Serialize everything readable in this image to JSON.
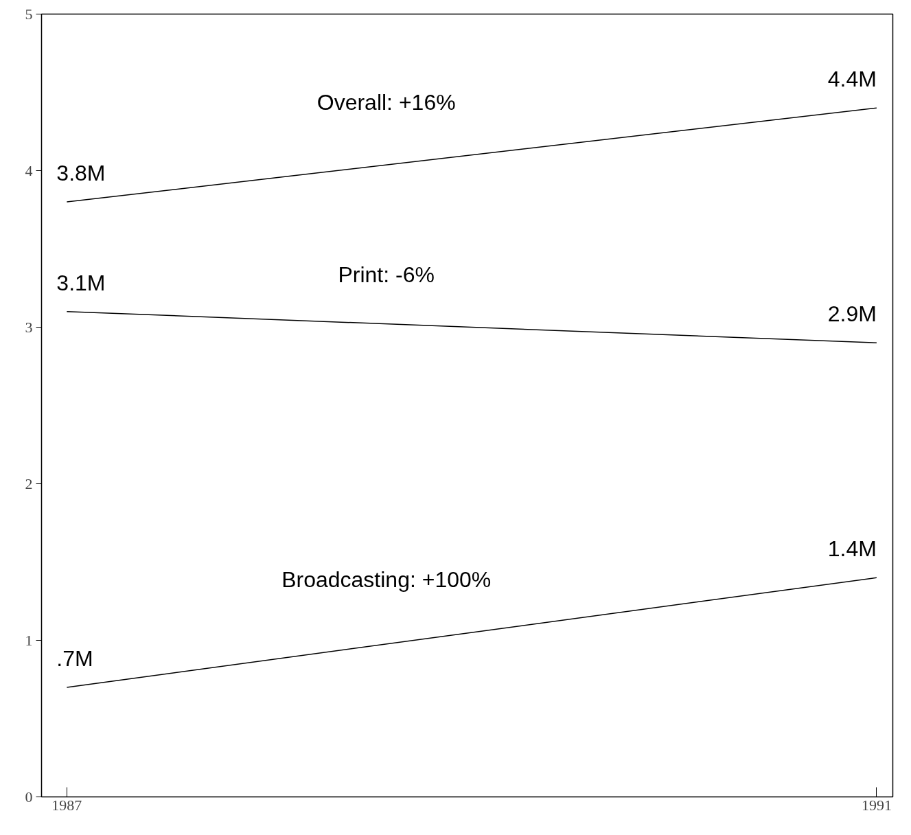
{
  "chart_data": {
    "type": "line",
    "x": [
      1987,
      1991
    ],
    "xlim": [
      1986.875,
      1991.08
    ],
    "xticks": [
      1987,
      1991
    ],
    "ylim": [
      0,
      5
    ],
    "yticks": [
      0,
      1,
      2,
      3,
      4,
      5
    ],
    "grid": false,
    "legend": false,
    "marker": "none",
    "line_style": "solid",
    "series": [
      {
        "name": "Overall:  +16%",
        "color": "#000000",
        "values": [
          3.8,
          4.4
        ],
        "value_labels": [
          "3.8M",
          "4.4M"
        ]
      },
      {
        "name": "Print:  -6%",
        "color": "#000000",
        "values": [
          3.1,
          2.9
        ],
        "value_labels": [
          "3.1M",
          "2.9M"
        ]
      },
      {
        "name": "Broadcasting:  +100%",
        "color": "#000000",
        "values": [
          0.7,
          1.4
        ],
        "value_labels": [
          ".7M",
          "1.4M"
        ]
      }
    ]
  }
}
